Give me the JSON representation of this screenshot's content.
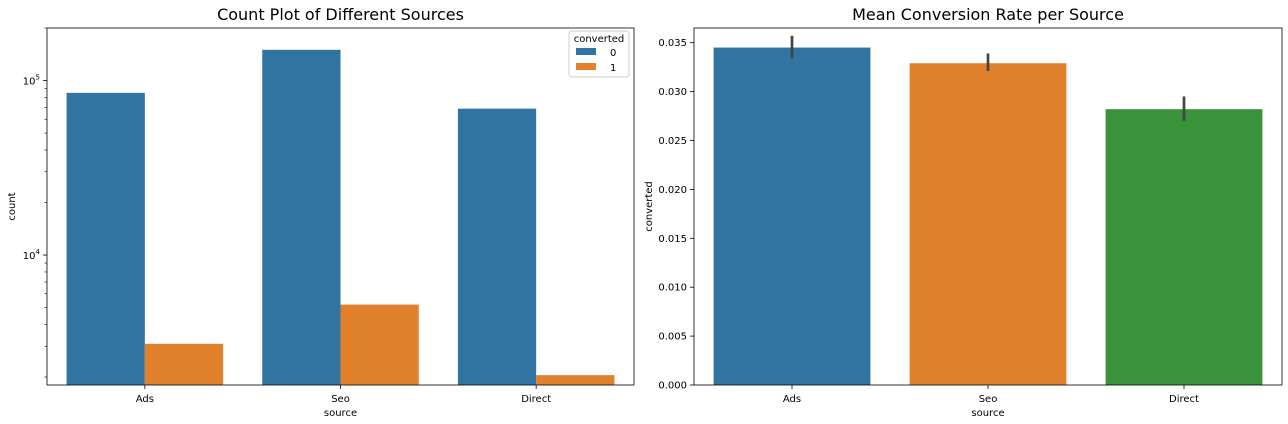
{
  "chart_data": [
    {
      "type": "bar",
      "title": "Count Plot of Different Sources",
      "xlabel": "source",
      "ylabel": "count",
      "yscale": "log",
      "ylim": [
        1800,
        200000
      ],
      "yticks": [
        {
          "value": 10000,
          "base": "10",
          "exp": "4"
        },
        {
          "value": 100000,
          "base": "10",
          "exp": "5"
        }
      ],
      "categories": [
        "Ads",
        "Seo",
        "Direct"
      ],
      "legend": {
        "title": "converted",
        "position": "top-right"
      },
      "series": [
        {
          "name": "0",
          "color": "#3274a1",
          "values": [
            85000,
            150000,
            69000
          ]
        },
        {
          "name": "1",
          "color": "#e1812c",
          "values": [
            3100,
            5200,
            2050
          ]
        }
      ]
    },
    {
      "type": "bar",
      "title": "Mean Conversion Rate per Source",
      "xlabel": "source",
      "ylabel": "converted",
      "ylim": [
        0,
        0.0365
      ],
      "yticks": [
        "0.000",
        "0.005",
        "0.010",
        "0.015",
        "0.020",
        "0.025",
        "0.030",
        "0.035"
      ],
      "categories": [
        "Ads",
        "Seo",
        "Direct"
      ],
      "values": [
        0.0345,
        0.0329,
        0.0282
      ],
      "errors": [
        [
          0.0334,
          0.0357
        ],
        [
          0.0321,
          0.0339
        ],
        [
          0.027,
          0.0295
        ]
      ],
      "colors": [
        "#3274a1",
        "#e1812c",
        "#3a923a"
      ]
    }
  ]
}
